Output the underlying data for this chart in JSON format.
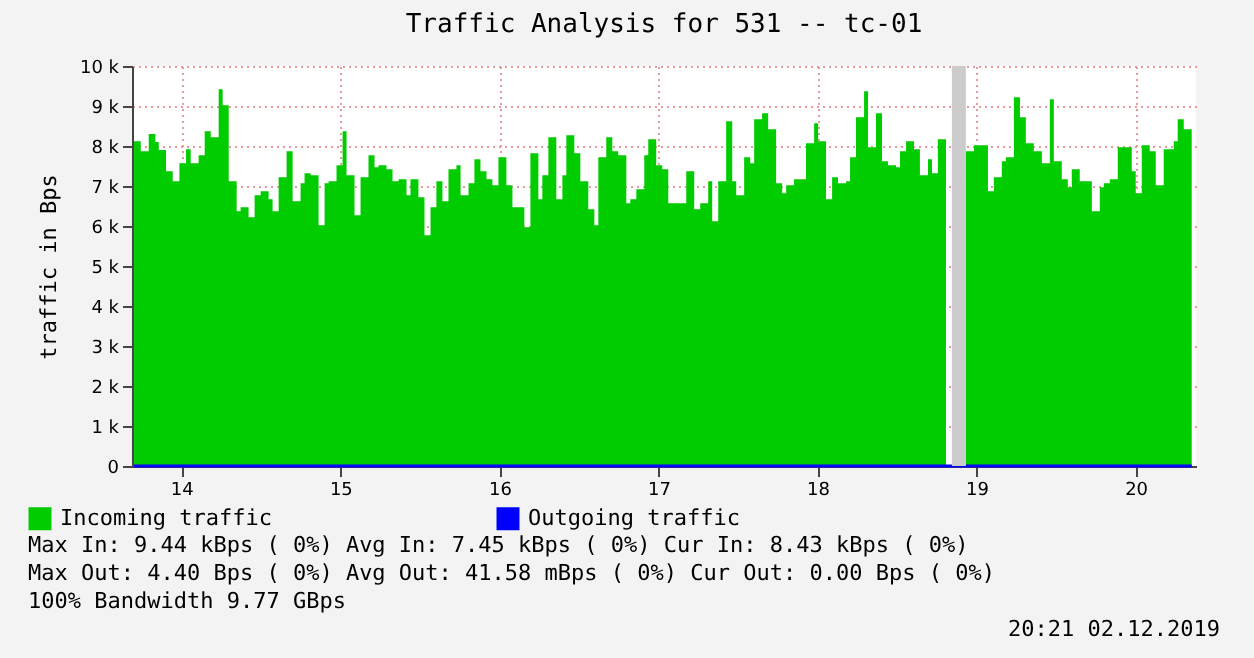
{
  "chart_data": {
    "type": "area",
    "title": "Traffic Analysis for 531 -- tc-01",
    "ylabel": "traffic in Bps",
    "xlim": [
      13.69,
      20.38
    ],
    "xticks": [
      14,
      15,
      16,
      17,
      18,
      19,
      20
    ],
    "ylim": [
      0,
      10000
    ],
    "yticks": [
      0,
      {
        "value": 1000,
        "label": "1 k"
      },
      {
        "value": 2000,
        "label": "2 k"
      },
      {
        "value": 3000,
        "label": "3 k"
      },
      {
        "value": 4000,
        "label": "4 k"
      },
      {
        "value": 5000,
        "label": "5 k"
      },
      {
        "value": 6000,
        "label": "6 k"
      },
      {
        "value": 7000,
        "label": "7 k"
      },
      {
        "value": 8000,
        "label": "8 k"
      },
      {
        "value": 9000,
        "label": "9 k"
      },
      {
        "value": 10000,
        "label": "10 k"
      }
    ],
    "grid": true,
    "legend": "bottom left",
    "series": [
      {
        "name": "Incoming traffic",
        "color": "#00cc00",
        "x": [
          13.703,
          13.745,
          13.795,
          13.837,
          13.858,
          13.904,
          13.946,
          13.988,
          14.03,
          14.059,
          14.109,
          14.147,
          14.185,
          14.235,
          14.26,
          14.298,
          14.348,
          14.373,
          14.423,
          14.461,
          14.499,
          14.549,
          14.574,
          14.612,
          14.662,
          14.7,
          14.75,
          14.775,
          14.813,
          14.863,
          14.901,
          14.926,
          14.976,
          15.014,
          15.039,
          15.089,
          15.127,
          15.177,
          15.215,
          15.24,
          15.29,
          15.328,
          15.366,
          15.416,
          15.441,
          15.491,
          15.529,
          15.567,
          15.604,
          15.642,
          15.68,
          15.73,
          15.756,
          15.806,
          15.843,
          15.881,
          15.919,
          15.956,
          15.994,
          16.044,
          16.082,
          16.157,
          16.195,
          16.245,
          16.27,
          16.308,
          16.358,
          16.396,
          16.421,
          16.471,
          16.509,
          16.559,
          16.597,
          16.622,
          16.672,
          16.71,
          16.747,
          16.798,
          16.823,
          16.861,
          16.911,
          16.936,
          16.986,
          17.024,
          17.062,
          17.175,
          17.225,
          17.263,
          17.313,
          17.338,
          17.376,
          17.426,
          17.464,
          17.489,
          17.539,
          17.577,
          17.602,
          17.652,
          17.69,
          17.74,
          17.778,
          17.803,
          17.853,
          17.928,
          17.979,
          18.004,
          18.054,
          18.092,
          18.129,
          18.18,
          18.205,
          18.242,
          18.293,
          18.318,
          18.368,
          18.406,
          18.443,
          18.494,
          18.519,
          18.557,
          18.607,
          18.644,
          18.695,
          18.72,
          18.757,
          18.808,
          18.845,
          18.933,
          18.984,
          19.072,
          19.109,
          19.159,
          19.185,
          19.235,
          19.273,
          19.31,
          19.36,
          19.411,
          19.461,
          19.486,
          19.536,
          19.574,
          19.599,
          19.649,
          19.725,
          19.775,
          19.8,
          19.838,
          19.888,
          19.976,
          20.001,
          20.039,
          20.089,
          20.127,
          20.177,
          20.24,
          20.265,
          20.303,
          20.353
        ],
        "values": [
          8120,
          7870,
          8300,
          8100,
          7900,
          7370,
          7120,
          7570,
          7920,
          7570,
          7770,
          8370,
          8220,
          9420,
          9020,
          7120,
          6370,
          6470,
          6220,
          6770,
          6870,
          6670,
          6370,
          7220,
          7870,
          6620,
          7070,
          7320,
          7270,
          6020,
          7070,
          7120,
          7520,
          8370,
          7270,
          6270,
          7220,
          7770,
          7470,
          7520,
          7420,
          7120,
          7170,
          6770,
          7170,
          6720,
          5770,
          6470,
          7120,
          6620,
          7420,
          7520,
          6770,
          7070,
          7670,
          7370,
          7170,
          7020,
          7720,
          7020,
          6470,
          5970,
          7820,
          6670,
          7270,
          8220,
          6670,
          7270,
          8270,
          7820,
          7120,
          6420,
          6020,
          7720,
          8220,
          7870,
          7770,
          6570,
          6670,
          6920,
          7770,
          8170,
          7520,
          7420,
          6570,
          7370,
          6420,
          6570,
          7120,
          6120,
          7120,
          8620,
          7120,
          6770,
          7720,
          7570,
          8670,
          8820,
          8420,
          7070,
          6820,
          7020,
          7170,
          8070,
          8570,
          8120,
          6670,
          7220,
          7070,
          7120,
          7720,
          8720,
          9370,
          7970,
          8820,
          7620,
          7520,
          7470,
          7870,
          8120,
          7920,
          7270,
          7670,
          7320,
          8170,
          8570,
          null,
          7870,
          8020,
          6870,
          7220,
          7620,
          7720,
          9220,
          8720,
          8070,
          7870,
          7570,
          9170,
          7620,
          7170,
          6970,
          7420,
          7120,
          6370,
          6970,
          7070,
          7170,
          7970,
          7370,
          6820,
          8020,
          7870,
          7020,
          7920,
          8120,
          8670,
          8420,
          8420
        ]
      },
      {
        "name": "Outgoing traffic",
        "color": "#0000ff",
        "type": "line",
        "x": [
          13.703,
          20.353
        ],
        "values": [
          0,
          0
        ]
      }
    ],
    "bands": [
      {
        "axis": "x",
        "from": 18.845,
        "to": 18.933,
        "color": "#cccccc"
      }
    ],
    "annotations": [
      "Max In:   9.44 kBps ( 0%)  Avg In:   7.45 kBps ( 0%)  Cur In:   8.43 kBps ( 0%)",
      "Max Out:  4.40  Bps ( 0%)  Avg Out: 41.58 mBps ( 0%)  Cur Out:  0.00  Bps ( 0%)",
      "100% Bandwidth 9.77 GBps",
      "20:21 02.12.2019"
    ]
  }
}
